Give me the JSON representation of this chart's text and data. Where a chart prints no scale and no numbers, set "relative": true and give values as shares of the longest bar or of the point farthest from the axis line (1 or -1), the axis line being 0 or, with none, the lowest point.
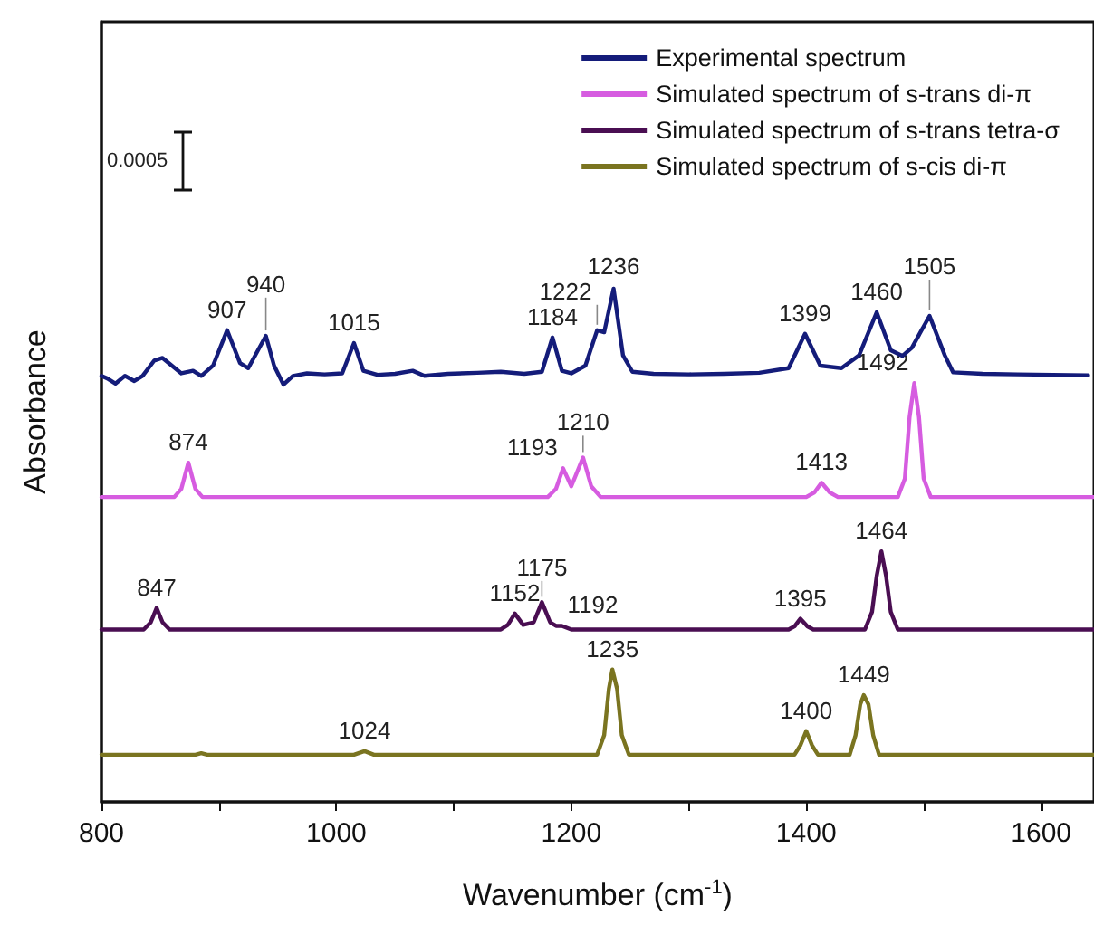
{
  "chart_data": {
    "type": "line",
    "xlabel": "Wavenumber (cm$^{-1}$)",
    "ylabel": "Absorbance",
    "relative": true,
    "xlim": [
      800,
      1645
    ],
    "xticks": [
      800,
      {
        "value": 900,
        "label": null
      },
      1000,
      {
        "value": 1100,
        "label": null
      },
      1200,
      {
        "value": 1300,
        "label": null
      },
      1400,
      {
        "value": 1500,
        "label": null
      },
      1600
    ],
    "grid": false,
    "legend": "top right",
    "marker": "none",
    "line_style": "solid",
    "series": [
      {
        "name": "Experimental spectrum",
        "color": "#141c7a",
        "x": [
          800,
          805,
          812,
          820,
          828,
          835,
          845,
          852,
          860,
          868,
          878,
          885,
          895,
          907,
          918,
          925,
          940,
          947,
          955,
          963,
          975,
          990,
          1005,
          1015,
          1023,
          1035,
          1050,
          1065,
          1075,
          1095,
          1120,
          1140,
          1160,
          1175,
          1184,
          1192,
          1200,
          1212,
          1222,
          1228,
          1236,
          1244,
          1252,
          1270,
          1300,
          1330,
          1360,
          1385,
          1399,
          1412,
          1430,
          1445,
          1460,
          1472,
          1482,
          1490,
          1505,
          1518,
          1525,
          1550,
          1580,
          1610,
          1640
        ],
        "values": [
          0.83,
          0.825,
          0.815,
          0.83,
          0.82,
          0.83,
          0.86,
          0.865,
          0.85,
          0.835,
          0.84,
          0.83,
          0.85,
          0.919,
          0.855,
          0.845,
          0.908,
          0.85,
          0.813,
          0.83,
          0.835,
          0.833,
          0.835,
          0.894,
          0.84,
          0.832,
          0.834,
          0.84,
          0.83,
          0.834,
          0.836,
          0.838,
          0.834,
          0.838,
          0.905,
          0.84,
          0.835,
          0.85,
          0.919,
          0.915,
          1.0,
          0.87,
          0.838,
          0.834,
          0.833,
          0.834,
          0.836,
          0.845,
          0.912,
          0.85,
          0.845,
          0.87,
          0.954,
          0.88,
          0.869,
          0.885,
          0.947,
          0.87,
          0.837,
          0.834,
          0.833,
          0.832,
          0.831
        ]
      },
      {
        "name": "Simulated spectrum of s-trans di-π",
        "color": "#d65ce0",
        "x": [
          800,
          862,
          868,
          874,
          880,
          886,
          1180,
          1187,
          1193,
          1200,
          1210,
          1217,
          1225,
          1400,
          1407,
          1413,
          1420,
          1427,
          1478,
          1484,
          1488,
          1492,
          1496,
          1500,
          1506,
          1645
        ],
        "values": [
          0.594,
          0.594,
          0.61,
          0.661,
          0.61,
          0.594,
          0.594,
          0.61,
          0.65,
          0.615,
          0.671,
          0.615,
          0.594,
          0.594,
          0.603,
          0.622,
          0.603,
          0.594,
          0.594,
          0.63,
          0.75,
          0.816,
          0.75,
          0.63,
          0.594,
          0.594
        ]
      },
      {
        "name": "Simulated spectrum of s-trans tetra-σ",
        "color": "#4a0e52",
        "x": [
          800,
          836,
          842,
          847,
          852,
          858,
          1140,
          1146,
          1152,
          1159,
          1168,
          1175,
          1182,
          1187,
          1192,
          1200,
          1385,
          1390,
          1395,
          1401,
          1406,
          1450,
          1456,
          1460,
          1464,
          1468,
          1472,
          1478,
          1645
        ],
        "values": [
          0.336,
          0.336,
          0.35,
          0.378,
          0.35,
          0.336,
          0.336,
          0.345,
          0.367,
          0.345,
          0.35,
          0.389,
          0.35,
          0.343,
          0.343,
          0.336,
          0.336,
          0.342,
          0.357,
          0.342,
          0.336,
          0.336,
          0.37,
          0.44,
          0.488,
          0.44,
          0.37,
          0.336,
          0.336
        ]
      },
      {
        "name": "Simulated spectrum of s-cis di-π",
        "color": "#7a7420",
        "x": [
          800,
          880,
          885,
          890,
          1015,
          1024,
          1032,
          1222,
          1228,
          1232,
          1235,
          1239,
          1243,
          1249,
          1390,
          1395,
          1400,
          1405,
          1410,
          1437,
          1442,
          1446,
          1449,
          1453,
          1457,
          1462,
          1645
        ],
        "values": [
          0.092,
          0.092,
          0.095,
          0.092,
          0.092,
          0.099,
          0.092,
          0.092,
          0.13,
          0.22,
          0.258,
          0.22,
          0.13,
          0.092,
          0.092,
          0.11,
          0.138,
          0.11,
          0.092,
          0.092,
          0.13,
          0.19,
          0.208,
          0.19,
          0.13,
          0.092,
          0.092
        ]
      }
    ],
    "annotations": [
      "0.0005",
      {
        "text": "907",
        "x": 907,
        "y": 0.919
      },
      {
        "text": "940",
        "x": 940,
        "y": 0.908
      },
      {
        "text": "1015",
        "x": 1015,
        "y": 0.894
      },
      {
        "text": "1184",
        "x": 1184,
        "y": 0.905
      },
      {
        "text": "1222",
        "x": 1222,
        "y": 0.919
      },
      {
        "text": "1236",
        "x": 1236,
        "y": 1.0
      },
      {
        "text": "1399",
        "x": 1399,
        "y": 0.912
      },
      {
        "text": "1460",
        "x": 1460,
        "y": 0.954
      },
      {
        "text": "1505",
        "x": 1505,
        "y": 0.947
      },
      {
        "text": "874",
        "x": 874,
        "y": 0.661
      },
      {
        "text": "1193",
        "x": 1193,
        "y": 0.65
      },
      {
        "text": "1210",
        "x": 1210,
        "y": 0.671
      },
      {
        "text": "1413",
        "x": 1413,
        "y": 0.622
      },
      {
        "text": "1492",
        "x": 1492,
        "y": 0.816
      },
      {
        "text": "847",
        "x": 847,
        "y": 0.378
      },
      {
        "text": "1152",
        "x": 1152,
        "y": 0.367
      },
      {
        "text": "1175",
        "x": 1175,
        "y": 0.389
      },
      {
        "text": "1192",
        "x": 1192,
        "y": 0.343
      },
      {
        "text": "1395",
        "x": 1395,
        "y": 0.357
      },
      {
        "text": "1464",
        "x": 1464,
        "y": 0.488
      },
      {
        "text": "1024",
        "x": 1024,
        "y": 0.099
      },
      {
        "text": "1235",
        "x": 1235,
        "y": 0.258
      },
      {
        "text": "1400",
        "x": 1400,
        "y": 0.138
      },
      {
        "text": "1449",
        "x": 1449,
        "y": 0.208
      }
    ]
  }
}
